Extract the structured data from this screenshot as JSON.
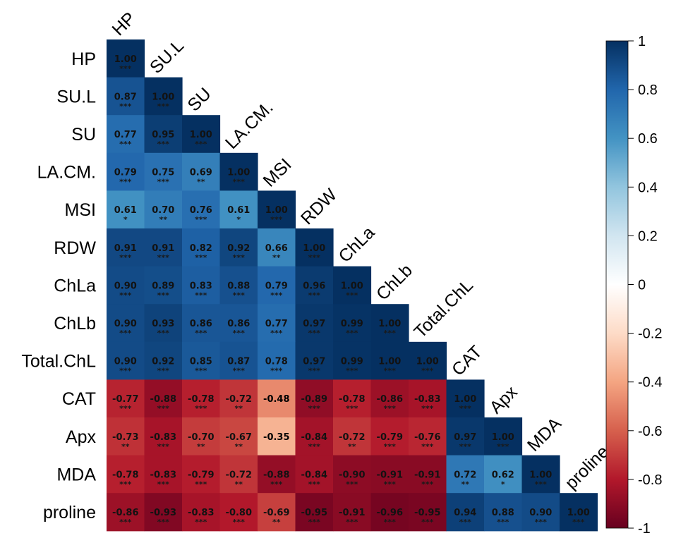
{
  "chart_data": {
    "type": "heatmap",
    "variables": [
      "HP",
      "SU.L",
      "SU",
      "LA.CM.",
      "MSI",
      "RDW",
      "ChLa",
      "ChLb",
      "Total.ChL",
      "CAT",
      "Apx",
      "MDA",
      "proline"
    ],
    "correlations": [
      [
        1.0
      ],
      [
        0.87,
        1.0
      ],
      [
        0.77,
        0.95,
        1.0
      ],
      [
        0.79,
        0.75,
        0.69,
        1.0
      ],
      [
        0.61,
        0.7,
        0.76,
        0.61,
        1.0
      ],
      [
        0.91,
        0.91,
        0.82,
        0.92,
        0.66,
        1.0
      ],
      [
        0.9,
        0.89,
        0.83,
        0.88,
        0.79,
        0.96,
        1.0
      ],
      [
        0.9,
        0.93,
        0.86,
        0.86,
        0.77,
        0.97,
        0.99,
        1.0
      ],
      [
        0.9,
        0.92,
        0.85,
        0.87,
        0.78,
        0.97,
        0.99,
        1.0,
        1.0
      ],
      [
        -0.77,
        -0.88,
        -0.78,
        -0.72,
        -0.48,
        -0.89,
        -0.78,
        -0.86,
        -0.83,
        1.0
      ],
      [
        -0.73,
        -0.83,
        -0.7,
        -0.67,
        -0.35,
        -0.84,
        -0.72,
        -0.79,
        -0.76,
        0.97,
        1.0
      ],
      [
        -0.78,
        -0.83,
        -0.79,
        -0.72,
        -0.88,
        -0.84,
        -0.9,
        -0.91,
        -0.91,
        0.72,
        0.62,
        1.0
      ],
      [
        -0.86,
        -0.93,
        -0.83,
        -0.8,
        -0.69,
        -0.95,
        -0.91,
        -0.96,
        -0.95,
        0.94,
        0.88,
        0.9,
        1.0
      ]
    ],
    "significance": [
      [
        "***"
      ],
      [
        "***",
        "***"
      ],
      [
        "***",
        "***",
        "***"
      ],
      [
        "***",
        "***",
        "**",
        "***"
      ],
      [
        "*",
        "**",
        "***",
        "*",
        "***"
      ],
      [
        "***",
        "***",
        "***",
        "***",
        "**",
        "***"
      ],
      [
        "***",
        "***",
        "***",
        "***",
        "***",
        "***",
        "***"
      ],
      [
        "***",
        "***",
        "***",
        "***",
        "***",
        "***",
        "***",
        "***"
      ],
      [
        "***",
        "***",
        "***",
        "***",
        "***",
        "***",
        "***",
        "***",
        "***"
      ],
      [
        "***",
        "***",
        "***",
        "**",
        "",
        "***",
        "***",
        "***",
        "***",
        "***"
      ],
      [
        "**",
        "***",
        "**",
        "**",
        "",
        "***",
        "**",
        "***",
        "***",
        "***",
        "***"
      ],
      [
        "***",
        "***",
        "***",
        "**",
        "***",
        "***",
        "***",
        "***",
        "***",
        "**",
        "*",
        "***"
      ],
      [
        "***",
        "***",
        "***",
        "***",
        "**",
        "***",
        "***",
        "***",
        "***",
        "***",
        "***",
        "***",
        "***"
      ]
    ],
    "colorbar": {
      "ticks": [
        "1",
        "0.8",
        "0.6",
        "0.4",
        "0.2",
        "0",
        "-0.2",
        "-0.4",
        "-0.6",
        "-0.8",
        "-1"
      ],
      "range": [
        -1,
        1
      ],
      "colors": {
        "neg_1": "#67001F",
        "neg_0_8": "#B2182B",
        "neg_0_6": "#D6604D",
        "neg_0_4": "#F4A582",
        "neg_0_2": "#FDDBC7",
        "zero": "#FFFFFF",
        "pos_0_2": "#D1E5F0",
        "pos_0_4": "#92C5DE",
        "pos_0_6": "#4393C3",
        "pos_0_8": "#2166AC",
        "pos_1": "#053061"
      }
    },
    "grid": false,
    "legend_position": "right"
  }
}
